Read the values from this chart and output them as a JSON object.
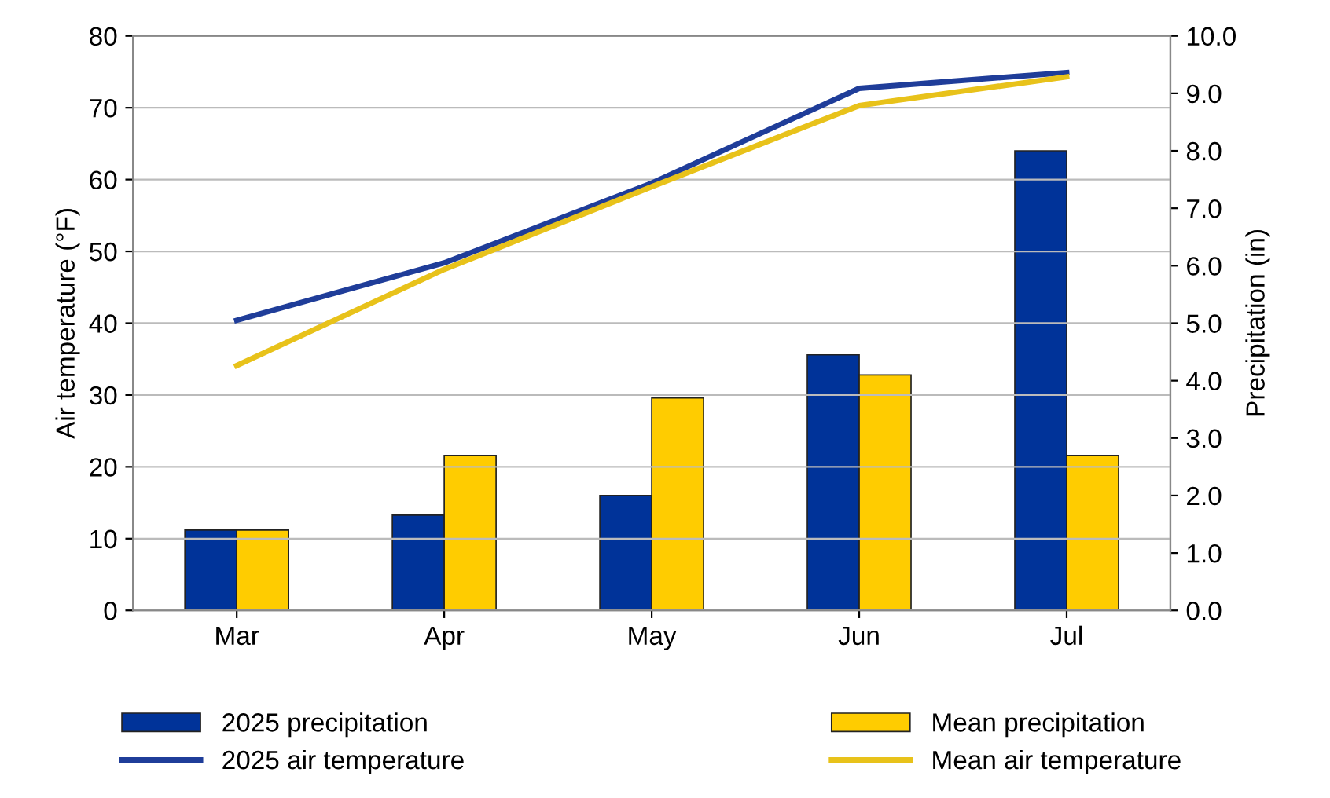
{
  "chart_data": {
    "type": "bar",
    "categories": [
      "Mar",
      "Apr",
      "May",
      "Jun",
      "Jul"
    ],
    "ylabel": "Air temperature (°F)",
    "y2label": "Precipitation (in)",
    "ylim": [
      0,
      80
    ],
    "yticks": [
      0,
      10,
      20,
      30,
      40,
      50,
      60,
      70,
      80
    ],
    "y2lim": [
      0,
      10
    ],
    "y2ticks": [
      {
        "value": 0,
        "label": "0.0"
      },
      {
        "value": 1,
        "label": "1.0"
      },
      {
        "value": 2,
        "label": "2.0"
      },
      {
        "value": 3,
        "label": "3.0"
      },
      {
        "value": 4,
        "label": "4.0"
      },
      {
        "value": 5,
        "label": "5.0"
      },
      {
        "value": 6,
        "label": "6.0"
      },
      {
        "value": 7,
        "label": "7.0"
      },
      {
        "value": 8,
        "label": "8.0"
      },
      {
        "value": 9,
        "label": "9.0"
      },
      {
        "value": 10,
        "label": "10.0"
      }
    ],
    "grid": "y",
    "legend": "bottom",
    "series": [
      {
        "name": "2025 precipitation",
        "axis": "y2",
        "color": "#003399",
        "values": [
          1.4,
          1.66,
          2.0,
          4.45,
          8.0
        ]
      },
      {
        "name": "Mean precipitation",
        "axis": "y2",
        "color": "#ffcc00",
        "values": [
          1.4,
          2.7,
          3.7,
          4.1,
          2.7
        ]
      },
      {
        "name": "2025 air temperature",
        "type": "line",
        "axis": "y",
        "color": "#1f3d99",
        "values": [
          40.4,
          48.4,
          59.5,
          72.7,
          74.9
        ]
      },
      {
        "name": "Mean air temperature",
        "type": "line",
        "axis": "y",
        "color": "#e8c21a",
        "values": [
          34.1,
          47.5,
          59.0,
          70.3,
          74.3
        ]
      }
    ]
  }
}
